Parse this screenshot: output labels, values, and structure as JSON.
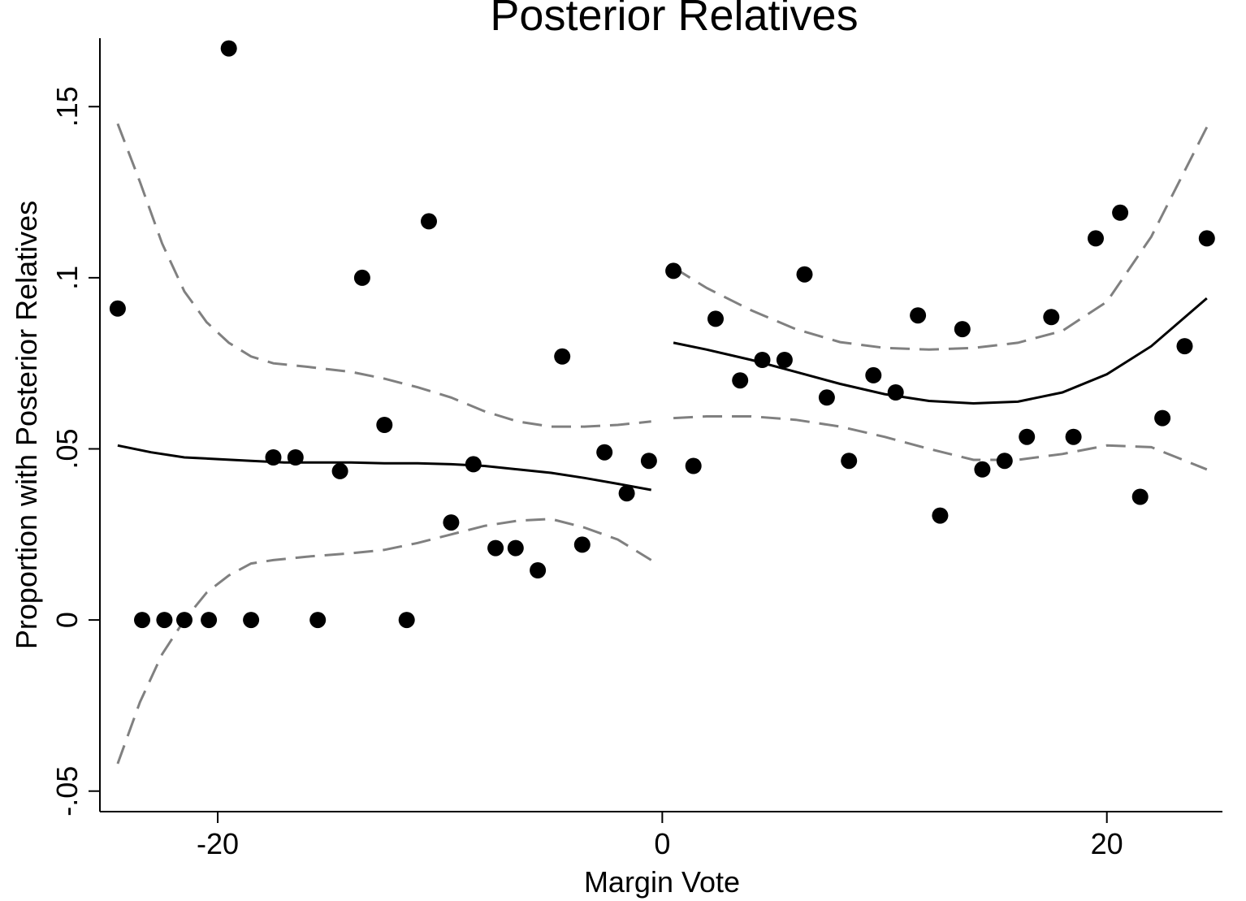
{
  "chart_data": {
    "type": "scatter",
    "title": "Posterior Relatives",
    "xlabel": "Margin Vote",
    "ylabel": "Proportion with Posterior Relatives",
    "xlim": [
      -25.3,
      25.2
    ],
    "ylim": [
      -0.056,
      0.17
    ],
    "x_ticks": [
      -20,
      0,
      20
    ],
    "x_tick_labels": [
      "-20",
      "0",
      "20"
    ],
    "y_ticks": [
      -0.05,
      0,
      0.05,
      0.1,
      0.15
    ],
    "y_tick_labels": [
      "-.05",
      "0",
      ".05",
      ".1",
      ".15"
    ],
    "grid": false,
    "colors": {
      "points": "#000000",
      "fit": "#000000",
      "ci": "#808080"
    },
    "points": {
      "x": [
        -24.5,
        -23.4,
        -22.4,
        -21.5,
        -20.4,
        -19.5,
        -18.5,
        -17.5,
        -16.5,
        -15.5,
        -14.5,
        -13.5,
        -12.5,
        -11.5,
        -10.5,
        -9.5,
        -8.5,
        -7.5,
        -6.6,
        -5.6,
        -4.5,
        -3.6,
        -2.6,
        -1.6,
        -0.6,
        0.5,
        1.4,
        2.4,
        3.5,
        4.5,
        5.5,
        6.4,
        7.4,
        8.4,
        9.5,
        10.5,
        11.5,
        12.5,
        13.5,
        14.4,
        15.4,
        16.4,
        17.5,
        18.5,
        19.5,
        20.6,
        21.5,
        22.5,
        23.5,
        24.5
      ],
      "y": [
        0.091,
        0.0,
        0.0,
        0.0,
        0.0,
        0.167,
        0.0,
        0.0475,
        0.0475,
        0.0,
        0.0435,
        0.1,
        0.057,
        0.0,
        0.1165,
        0.0285,
        0.0455,
        0.021,
        0.021,
        0.0145,
        0.077,
        0.022,
        0.049,
        0.037,
        0.0465,
        0.102,
        0.045,
        0.088,
        0.07,
        0.076,
        0.076,
        0.101,
        0.065,
        0.0465,
        0.0715,
        0.0665,
        0.089,
        0.0305,
        0.085,
        0.044,
        0.0465,
        0.0535,
        0.0885,
        0.0535,
        0.1115,
        0.119,
        0.036,
        0.059,
        0.08,
        0.1115
      ]
    },
    "series": [
      {
        "style": "solid",
        "x": [
          -24.5,
          -23,
          -21.5,
          -20,
          -18.5,
          -17,
          -15.5,
          -14,
          -12.5,
          -11,
          -9.5,
          -8,
          -6.5,
          -5,
          -3.5,
          -2,
          -0.5
        ],
        "y": [
          0.051,
          0.049,
          0.0475,
          0.047,
          0.0465,
          0.046,
          0.046,
          0.046,
          0.0458,
          0.0458,
          0.0455,
          0.045,
          0.044,
          0.043,
          0.0415,
          0.0398,
          0.038
        ]
      },
      {
        "style": "dashed",
        "x": [
          -24.5,
          -23.5,
          -22.5,
          -21.5,
          -20.5,
          -19.5,
          -18.5,
          -17.5,
          -16,
          -14,
          -12.5,
          -11,
          -9.5,
          -8,
          -6.5,
          -5,
          -3.5,
          -2,
          -0.5
        ],
        "y": [
          0.145,
          0.128,
          0.11,
          0.096,
          0.087,
          0.081,
          0.077,
          0.075,
          0.074,
          0.0725,
          0.0705,
          0.068,
          0.065,
          0.061,
          0.058,
          0.0565,
          0.0565,
          0.057,
          0.058
        ]
      },
      {
        "style": "dashed",
        "x": [
          -24.5,
          -23.5,
          -22.5,
          -21.5,
          -20.5,
          -19.5,
          -18.5,
          -17.5,
          -16,
          -14,
          -12.5,
          -11,
          -9.5,
          -8,
          -6.5,
          -5,
          -3.5,
          -2,
          -0.5
        ],
        "y": [
          -0.042,
          -0.024,
          -0.01,
          0.0,
          0.008,
          0.013,
          0.0165,
          0.0175,
          0.0185,
          0.0195,
          0.0205,
          0.0225,
          0.025,
          0.0275,
          0.029,
          0.0295,
          0.027,
          0.0235,
          0.0175
        ]
      },
      {
        "style": "solid",
        "x": [
          0.5,
          2,
          4,
          6,
          8,
          10,
          12,
          14,
          16,
          18,
          20,
          22,
          24.5
        ],
        "y": [
          0.081,
          0.079,
          0.076,
          0.0725,
          0.069,
          0.066,
          0.064,
          0.0633,
          0.0638,
          0.0665,
          0.0718,
          0.08,
          0.094
        ]
      },
      {
        "style": "dashed",
        "x": [
          0.5,
          2,
          4,
          6,
          8,
          10,
          12,
          14,
          16,
          18,
          20,
          22,
          24.5
        ],
        "y": [
          0.103,
          0.097,
          0.0905,
          0.085,
          0.0812,
          0.0795,
          0.079,
          0.0795,
          0.081,
          0.0845,
          0.093,
          0.112,
          0.144
        ]
      },
      {
        "style": "dashed",
        "x": [
          0.5,
          2,
          4,
          6,
          8,
          10,
          12,
          14,
          16,
          18,
          20,
          22,
          24.5
        ],
        "y": [
          0.059,
          0.0595,
          0.0595,
          0.0585,
          0.0565,
          0.0535,
          0.05,
          0.0468,
          0.0468,
          0.0485,
          0.051,
          0.0505,
          0.044
        ]
      }
    ]
  }
}
